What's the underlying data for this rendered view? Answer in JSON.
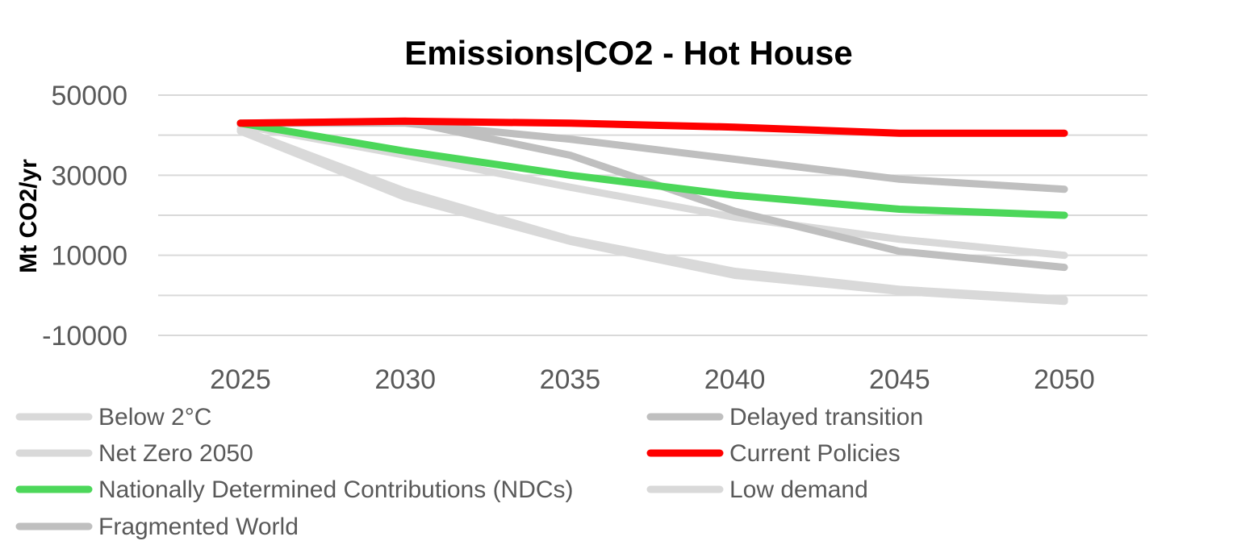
{
  "chart_data": {
    "type": "line",
    "title": "Emissions|CO2 - Hot House",
    "ylabel": "Mt CO2/yr",
    "xlabel": "",
    "categories": [
      "2025",
      "2030",
      "2035",
      "2040",
      "2045",
      "2050"
    ],
    "yticks": [
      "-10000",
      "",
      "10000",
      "",
      "30000",
      "",
      "50000"
    ],
    "ylim": [
      -10000,
      50000
    ],
    "grid": true,
    "legend_position": "bottom",
    "series": [
      {
        "name": "Below 2°C",
        "color": "#d9d9d9",
        "values": [
          41500,
          26000,
          14000,
          6000,
          1500,
          -1000
        ]
      },
      {
        "name": "Delayed transition",
        "color": "#bfbfbf",
        "values": [
          43000,
          43500,
          35000,
          21000,
          11000,
          7000
        ]
      },
      {
        "name": "Net Zero 2050",
        "color": "#d9d9d9",
        "values": [
          41000,
          24500,
          13500,
          5000,
          1000,
          -1500
        ]
      },
      {
        "name": "Current Policies",
        "color": "#ff0000",
        "values": [
          43000,
          43500,
          43000,
          42000,
          40500,
          40500
        ]
      },
      {
        "name": "Nationally Determined Contributions (NDCs)",
        "color": "#4cd75a",
        "values": [
          43000,
          36000,
          30000,
          25000,
          21500,
          20000
        ]
      },
      {
        "name": "Low demand",
        "color": "#d9d9d9",
        "values": [
          42500,
          35000,
          27000,
          19500,
          14000,
          10000
        ]
      },
      {
        "name": "Fragmented World",
        "color": "#bfbfbf",
        "values": [
          43000,
          43000,
          39000,
          34000,
          29000,
          26500
        ]
      }
    ]
  }
}
